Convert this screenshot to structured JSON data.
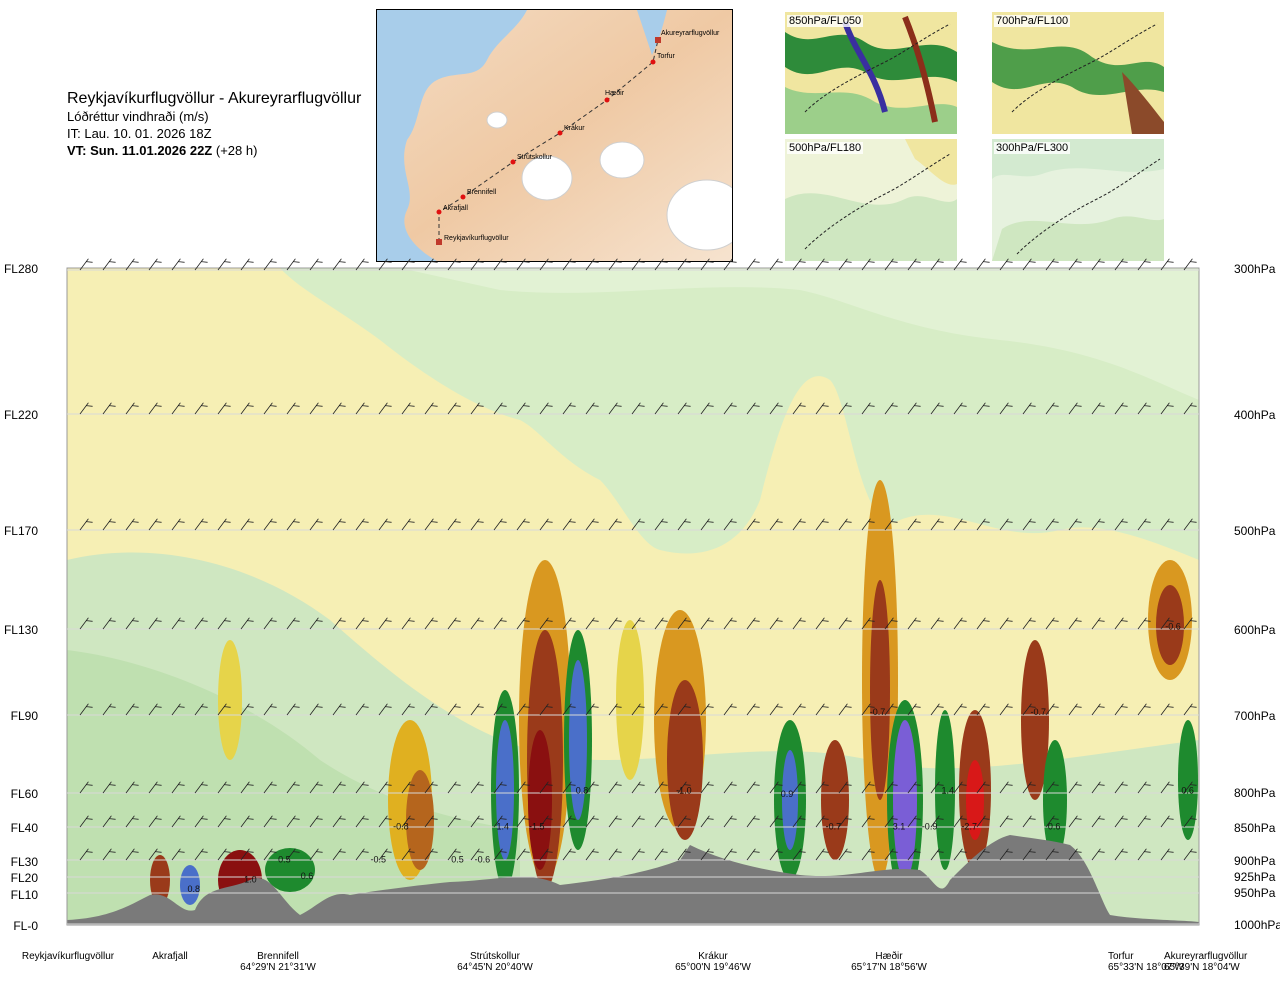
{
  "header": {
    "route_title": "Reykjavíkurflugvöllur - Akureyrarflugvöllur",
    "parameter": "Lóðréttur vindhraði (m/s)",
    "issue_time": "IT: Lau. 10. 01. 2026 18Z",
    "valid_time_bold": "VT: Sun. 11.01.2026 22Z",
    "valid_time_lead": "(+28 h)"
  },
  "route_map": {
    "waypoints": [
      "Reykjavíkurflugvöllur",
      "Akrafjall",
      "Brennifell",
      "Strútskollur",
      "Krákur",
      "Hæðir",
      "Torfur",
      "Akureyrarflugvöllur"
    ]
  },
  "level_maps": [
    {
      "label": "850hPa/FL050"
    },
    {
      "label": "700hPa/FL100"
    },
    {
      "label": "500hPa/FL180"
    },
    {
      "label": "300hPa/FL300"
    }
  ],
  "chart_data": {
    "type": "heatmap",
    "title": "",
    "x_stations": [
      {
        "name": "Reykjavíkurflugvöllur",
        "coord": ""
      },
      {
        "name": "Akrafjall",
        "coord": ""
      },
      {
        "name": "Brennifell",
        "coord": "64°29'N 21°31'W"
      },
      {
        "name": "Strútskollur",
        "coord": "64°45'N 20°40'W"
      },
      {
        "name": "Krákur",
        "coord": "65°00'N 19°46'W"
      },
      {
        "name": "Hæðir",
        "coord": "65°17'N 18°56'W"
      },
      {
        "name": "Torfur",
        "coord": "65°33'N 18°07'W"
      },
      {
        "name": "Akureyrarflugvöllur",
        "coord": "65°39'N 18°04'W"
      }
    ],
    "y_levels": [
      {
        "fl": "FL280",
        "hpa": "300hPa"
      },
      {
        "fl": "FL220",
        "hpa": "400hPa"
      },
      {
        "fl": "FL170",
        "hpa": "500hPa"
      },
      {
        "fl": "FL130",
        "hpa": "600hPa"
      },
      {
        "fl": "FL90",
        "hpa": "700hPa"
      },
      {
        "fl": "FL60",
        "hpa": "800hPa"
      },
      {
        "fl": "FL40",
        "hpa": "850hPa"
      },
      {
        "fl": "FL30",
        "hpa": "900hPa"
      },
      {
        "fl": "FL20",
        "hpa": "925hPa"
      },
      {
        "fl": "FL10",
        "hpa": "950hPa"
      },
      {
        "fl": "FL-0",
        "hpa": "1000hPa"
      }
    ],
    "contour_labels": [
      {
        "text": "0.8",
        "station_frac": 0.112,
        "level_frac": 0.95
      },
      {
        "text": "0.5",
        "station_frac": 0.192,
        "level_frac": 0.905
      },
      {
        "text": "0.6",
        "station_frac": 0.212,
        "level_frac": 0.93
      },
      {
        "text": "1.0",
        "station_frac": 0.162,
        "level_frac": 0.935
      },
      {
        "text": "-0.5",
        "station_frac": 0.275,
        "level_frac": 0.905
      },
      {
        "text": "-0.8",
        "station_frac": 0.295,
        "level_frac": 0.855
      },
      {
        "text": "0.5",
        "station_frac": 0.345,
        "level_frac": 0.905
      },
      {
        "text": "-0.6",
        "station_frac": 0.367,
        "level_frac": 0.905
      },
      {
        "text": "1.4",
        "station_frac": 0.385,
        "level_frac": 0.855
      },
      {
        "text": "-1.5",
        "station_frac": 0.415,
        "level_frac": 0.855
      },
      {
        "text": "0.8",
        "station_frac": 0.455,
        "level_frac": 0.8
      },
      {
        "text": "-1.0",
        "station_frac": 0.545,
        "level_frac": 0.8
      },
      {
        "text": "0.9",
        "station_frac": 0.636,
        "level_frac": 0.805
      },
      {
        "text": "-0.7",
        "station_frac": 0.677,
        "level_frac": 0.855
      },
      {
        "text": "-0.7",
        "station_frac": 0.716,
        "level_frac": 0.68
      },
      {
        "text": "3.1",
        "station_frac": 0.735,
        "level_frac": 0.855
      },
      {
        "text": "-0.9",
        "station_frac": 0.762,
        "level_frac": 0.855
      },
      {
        "text": "1.4",
        "station_frac": 0.778,
        "level_frac": 0.8
      },
      {
        "text": "-2.7",
        "station_frac": 0.797,
        "level_frac": 0.855
      },
      {
        "text": "-0.7",
        "station_frac": 0.858,
        "level_frac": 0.68
      },
      {
        "text": "0.6",
        "station_frac": 0.872,
        "level_frac": 0.855
      },
      {
        "text": "-0.6",
        "station_frac": 0.977,
        "level_frac": 0.55
      },
      {
        "text": "0.6",
        "station_frac": 0.99,
        "level_frac": 0.8
      }
    ]
  }
}
